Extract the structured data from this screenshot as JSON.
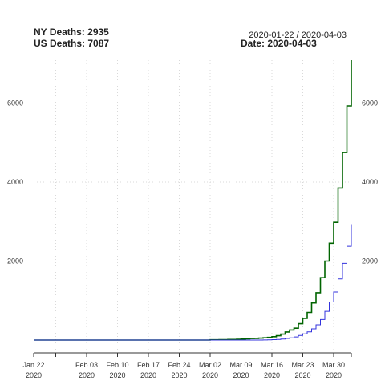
{
  "header": {
    "ny_label": "NY Deaths:",
    "ny_value": "2935",
    "us_label": "US Deaths:",
    "us_value": "7087",
    "range": "2020-01-22 / 2020-04-03",
    "date_label": "Date:",
    "date_value": "2020-04-03"
  },
  "chart_data": {
    "type": "line",
    "x_start": "2020-01-22",
    "x_end": "2020-04-03",
    "ylim": [
      0,
      7087
    ],
    "grid": true,
    "y_ticks": [
      2000,
      4000,
      6000
    ],
    "x_ticks": [
      {
        "date": "2020-01-22",
        "label": "Jan 22",
        "year": "2020"
      },
      {
        "date": "2020-02-03",
        "label": "Feb 03",
        "year": "2020"
      },
      {
        "date": "2020-02-10",
        "label": "Feb 10",
        "year": "2020"
      },
      {
        "date": "2020-02-17",
        "label": "Feb 17",
        "year": "2020"
      },
      {
        "date": "2020-02-24",
        "label": "Feb 24",
        "year": "2020"
      },
      {
        "date": "2020-03-02",
        "label": "Mar 02",
        "year": "2020"
      },
      {
        "date": "2020-03-09",
        "label": "Mar 09",
        "year": "2020"
      },
      {
        "date": "2020-03-16",
        "label": "Mar 16",
        "year": "2020"
      },
      {
        "date": "2020-03-23",
        "label": "Mar 23",
        "year": "2020"
      },
      {
        "date": "2020-03-30",
        "label": "Mar 30",
        "year": "2020"
      }
    ],
    "x_minor_ticks": [
      "2020-01-27"
    ],
    "series": [
      {
        "color": "#006400",
        "x": [
          "2020-01-22",
          "2020-02-29",
          "2020-03-02",
          "2020-03-04",
          "2020-03-06",
          "2020-03-08",
          "2020-03-09",
          "2020-03-10",
          "2020-03-11",
          "2020-03-12",
          "2020-03-13",
          "2020-03-14",
          "2020-03-15",
          "2020-03-16",
          "2020-03-17",
          "2020-03-18",
          "2020-03-19",
          "2020-03-20",
          "2020-03-21",
          "2020-03-22",
          "2020-03-23",
          "2020-03-24",
          "2020-03-25",
          "2020-03-26",
          "2020-03-27",
          "2020-03-28",
          "2020-03-29",
          "2020-03-30",
          "2020-03-31",
          "2020-04-01",
          "2020-04-02",
          "2020-04-03"
        ],
        "values": [
          0,
          1,
          6,
          11,
          14,
          21,
          26,
          30,
          38,
          41,
          48,
          57,
          68,
          86,
          109,
          150,
          206,
          255,
          301,
          414,
          550,
          700,
          940,
          1200,
          1580,
          2000,
          2450,
          2980,
          3850,
          4750,
          5930,
          7087
        ]
      },
      {
        "color": "#3333dd",
        "x": [
          "2020-01-22",
          "2020-03-14",
          "2020-03-15",
          "2020-03-16",
          "2020-03-17",
          "2020-03-18",
          "2020-03-19",
          "2020-03-20",
          "2020-03-21",
          "2020-03-22",
          "2020-03-23",
          "2020-03-24",
          "2020-03-25",
          "2020-03-26",
          "2020-03-27",
          "2020-03-28",
          "2020-03-29",
          "2020-03-30",
          "2020-03-31",
          "2020-04-01",
          "2020-04-02",
          "2020-04-03"
        ],
        "values": [
          0,
          3,
          7,
          10,
          17,
          26,
          40,
          56,
          80,
          115,
          157,
          210,
          285,
          385,
          519,
          728,
          965,
          1218,
          1550,
          1941,
          2373,
          2935
        ]
      }
    ]
  }
}
